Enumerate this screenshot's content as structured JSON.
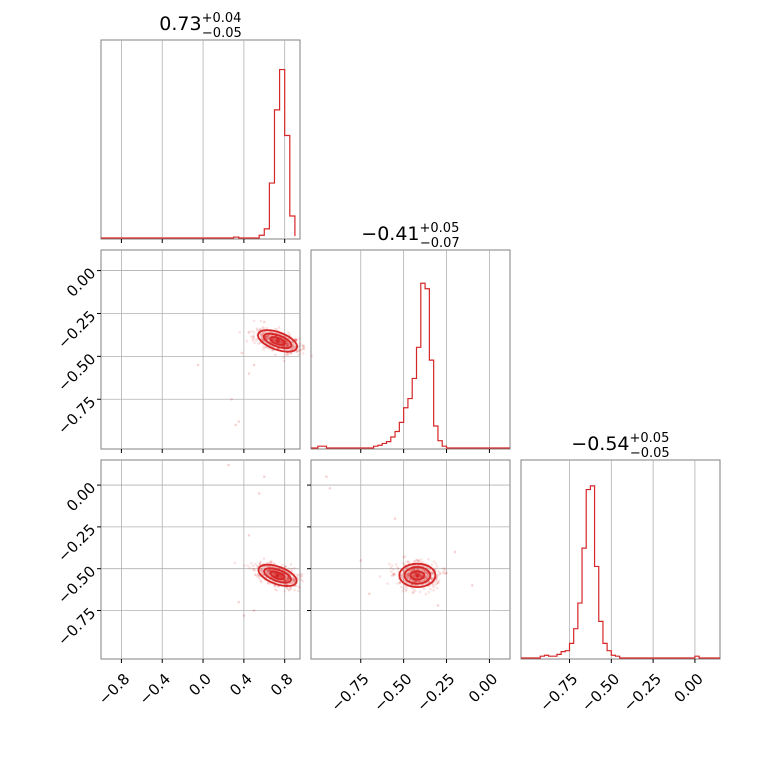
{
  "chart_data": {
    "type": "corner",
    "color": "#d62728",
    "frame_color": "#808080",
    "grid": true,
    "panel_titles": [
      {
        "median": "0.73",
        "plus": "+0.04",
        "minus": "−0.05"
      },
      {
        "median": "−0.41",
        "plus": "+0.05",
        "minus": "−0.07"
      },
      {
        "median": "−0.54",
        "plus": "+0.05",
        "minus": "−0.05"
      }
    ],
    "params": [
      {
        "range": [
          -1.0,
          0.95
        ],
        "ticks": [
          -0.8,
          -0.4,
          0.0,
          0.4,
          0.8
        ],
        "tick_labels": [
          "−0.8",
          "−0.4",
          "0.0",
          "0.4",
          "0.8"
        ]
      },
      {
        "range": [
          -1.04,
          0.12
        ],
        "ticks": [
          -0.75,
          -0.5,
          -0.25,
          0.0
        ],
        "tick_labels": [
          "−0.75",
          "−0.50",
          "−0.25",
          "0.00"
        ]
      },
      {
        "range": [
          -1.04,
          0.15
        ],
        "ticks": [
          -0.75,
          -0.5,
          -0.25,
          0.0
        ],
        "tick_labels": [
          "−0.75",
          "−0.50",
          "−0.25",
          "0.00"
        ]
      }
    ],
    "histograms": [
      {
        "param": 0,
        "bin_edges": [
          0.25,
          0.3,
          0.35,
          0.4,
          0.45,
          0.5,
          0.55,
          0.6,
          0.65,
          0.7,
          0.75,
          0.8,
          0.85,
          0.9
        ],
        "counts": [
          0,
          0.005,
          0,
          0,
          0,
          0,
          0.015,
          0.05,
          0.3,
          0.7,
          0.92,
          0.56,
          0.12,
          0.01
        ]
      },
      {
        "param": 1,
        "bin_edges": [
          -1.0,
          -0.975,
          -0.95,
          -0.925,
          -0.9,
          -0.875,
          -0.85,
          -0.825,
          -0.8,
          -0.775,
          -0.75,
          -0.725,
          -0.7,
          -0.675,
          -0.65,
          -0.625,
          -0.6,
          -0.575,
          -0.55,
          -0.525,
          -0.5,
          -0.475,
          -0.45,
          -0.425,
          -0.4,
          -0.375,
          -0.35,
          -0.325,
          -0.3,
          -0.275,
          -0.25,
          -0.225,
          -0.2,
          -0.175,
          -0.15,
          -0.125,
          -0.1,
          -0.075,
          -0.05,
          -0.025,
          0.0
        ],
        "counts": [
          0.01,
          0.01,
          0,
          0,
          0,
          0,
          0,
          0,
          0,
          0,
          0,
          0,
          0,
          0.01,
          0.015,
          0.025,
          0.035,
          0.06,
          0.09,
          0.14,
          0.22,
          0.27,
          0.38,
          0.55,
          0.9,
          0.87,
          0.48,
          0.12,
          0.04,
          0.01,
          0,
          0,
          0,
          0,
          0,
          0,
          0,
          0,
          0,
          0
        ]
      },
      {
        "param": 2,
        "bin_edges": [
          -1.0,
          -0.975,
          -0.95,
          -0.925,
          -0.9,
          -0.875,
          -0.85,
          -0.825,
          -0.8,
          -0.775,
          -0.75,
          -0.725,
          -0.7,
          -0.675,
          -0.65,
          -0.625,
          -0.6,
          -0.575,
          -0.55,
          -0.525,
          -0.5,
          -0.475,
          -0.45,
          -0.425,
          -0.4,
          -0.375,
          -0.35,
          -0.325,
          -0.3,
          -0.275,
          -0.25,
          -0.225,
          -0.2,
          -0.175,
          -0.15,
          -0.125,
          -0.1,
          -0.075,
          -0.05,
          -0.025,
          0.0,
          0.025,
          0.05,
          0.075,
          0.1
        ],
        "counts": [
          0,
          0,
          0,
          0.01,
          0.015,
          0.01,
          0.01,
          0.02,
          0.035,
          0.04,
          0.08,
          0.16,
          0.3,
          0.6,
          0.92,
          0.94,
          0.5,
          0.2,
          0.08,
          0.04,
          0.015,
          0.01,
          0,
          0,
          0,
          0,
          0,
          0,
          0,
          0,
          0,
          0,
          0,
          0,
          0,
          0,
          0,
          0,
          0,
          0,
          0.01,
          0,
          0,
          0
        ]
      }
    ],
    "pairs": [
      {
        "x_param": 0,
        "y_param": 1,
        "centre": [
          0.73,
          -0.41
        ],
        "contour_half_widths": [
          [
            0.03,
            0.045
          ],
          [
            0.055,
            0.085
          ],
          [
            0.085,
            0.12
          ]
        ],
        "tilt_deg": -70,
        "outliers": [
          [
            0.32,
            -0.9
          ],
          [
            0.35,
            -0.88
          ],
          [
            0.28,
            -0.75
          ],
          [
            0.45,
            -0.6
          ],
          [
            0.5,
            -0.55
          ],
          [
            0.38,
            -0.48
          ],
          [
            -0.05,
            -0.55
          ],
          [
            0.6,
            -0.3
          ]
        ]
      },
      {
        "x_param": 0,
        "y_param": 2,
        "centre": [
          0.73,
          -0.54
        ],
        "contour_half_widths": [
          [
            0.03,
            0.045
          ],
          [
            0.055,
            0.085
          ],
          [
            0.085,
            0.12
          ]
        ],
        "tilt_deg": -70,
        "outliers": [
          [
            0.25,
            0.12
          ],
          [
            0.6,
            0.05
          ],
          [
            0.55,
            -0.05
          ],
          [
            0.45,
            -0.3
          ],
          [
            0.35,
            -0.7
          ],
          [
            0.5,
            -0.75
          ],
          [
            0.4,
            -0.78
          ],
          [
            0.9,
            -0.6
          ]
        ]
      },
      {
        "x_param": 1,
        "y_param": 2,
        "centre": [
          -0.42,
          -0.54
        ],
        "contour_half_widths": [
          [
            0.04,
            0.025
          ],
          [
            0.075,
            0.05
          ],
          [
            0.105,
            0.07
          ]
        ],
        "tilt_deg": 0,
        "outliers": [
          [
            -0.95,
            0.05
          ],
          [
            -0.93,
            -0.02
          ],
          [
            -0.1,
            -0.6
          ],
          [
            -0.75,
            -0.45
          ],
          [
            -0.7,
            -0.65
          ],
          [
            -0.2,
            -0.4
          ],
          [
            -0.55,
            -0.2
          ],
          [
            -0.3,
            -0.72
          ]
        ]
      }
    ]
  }
}
